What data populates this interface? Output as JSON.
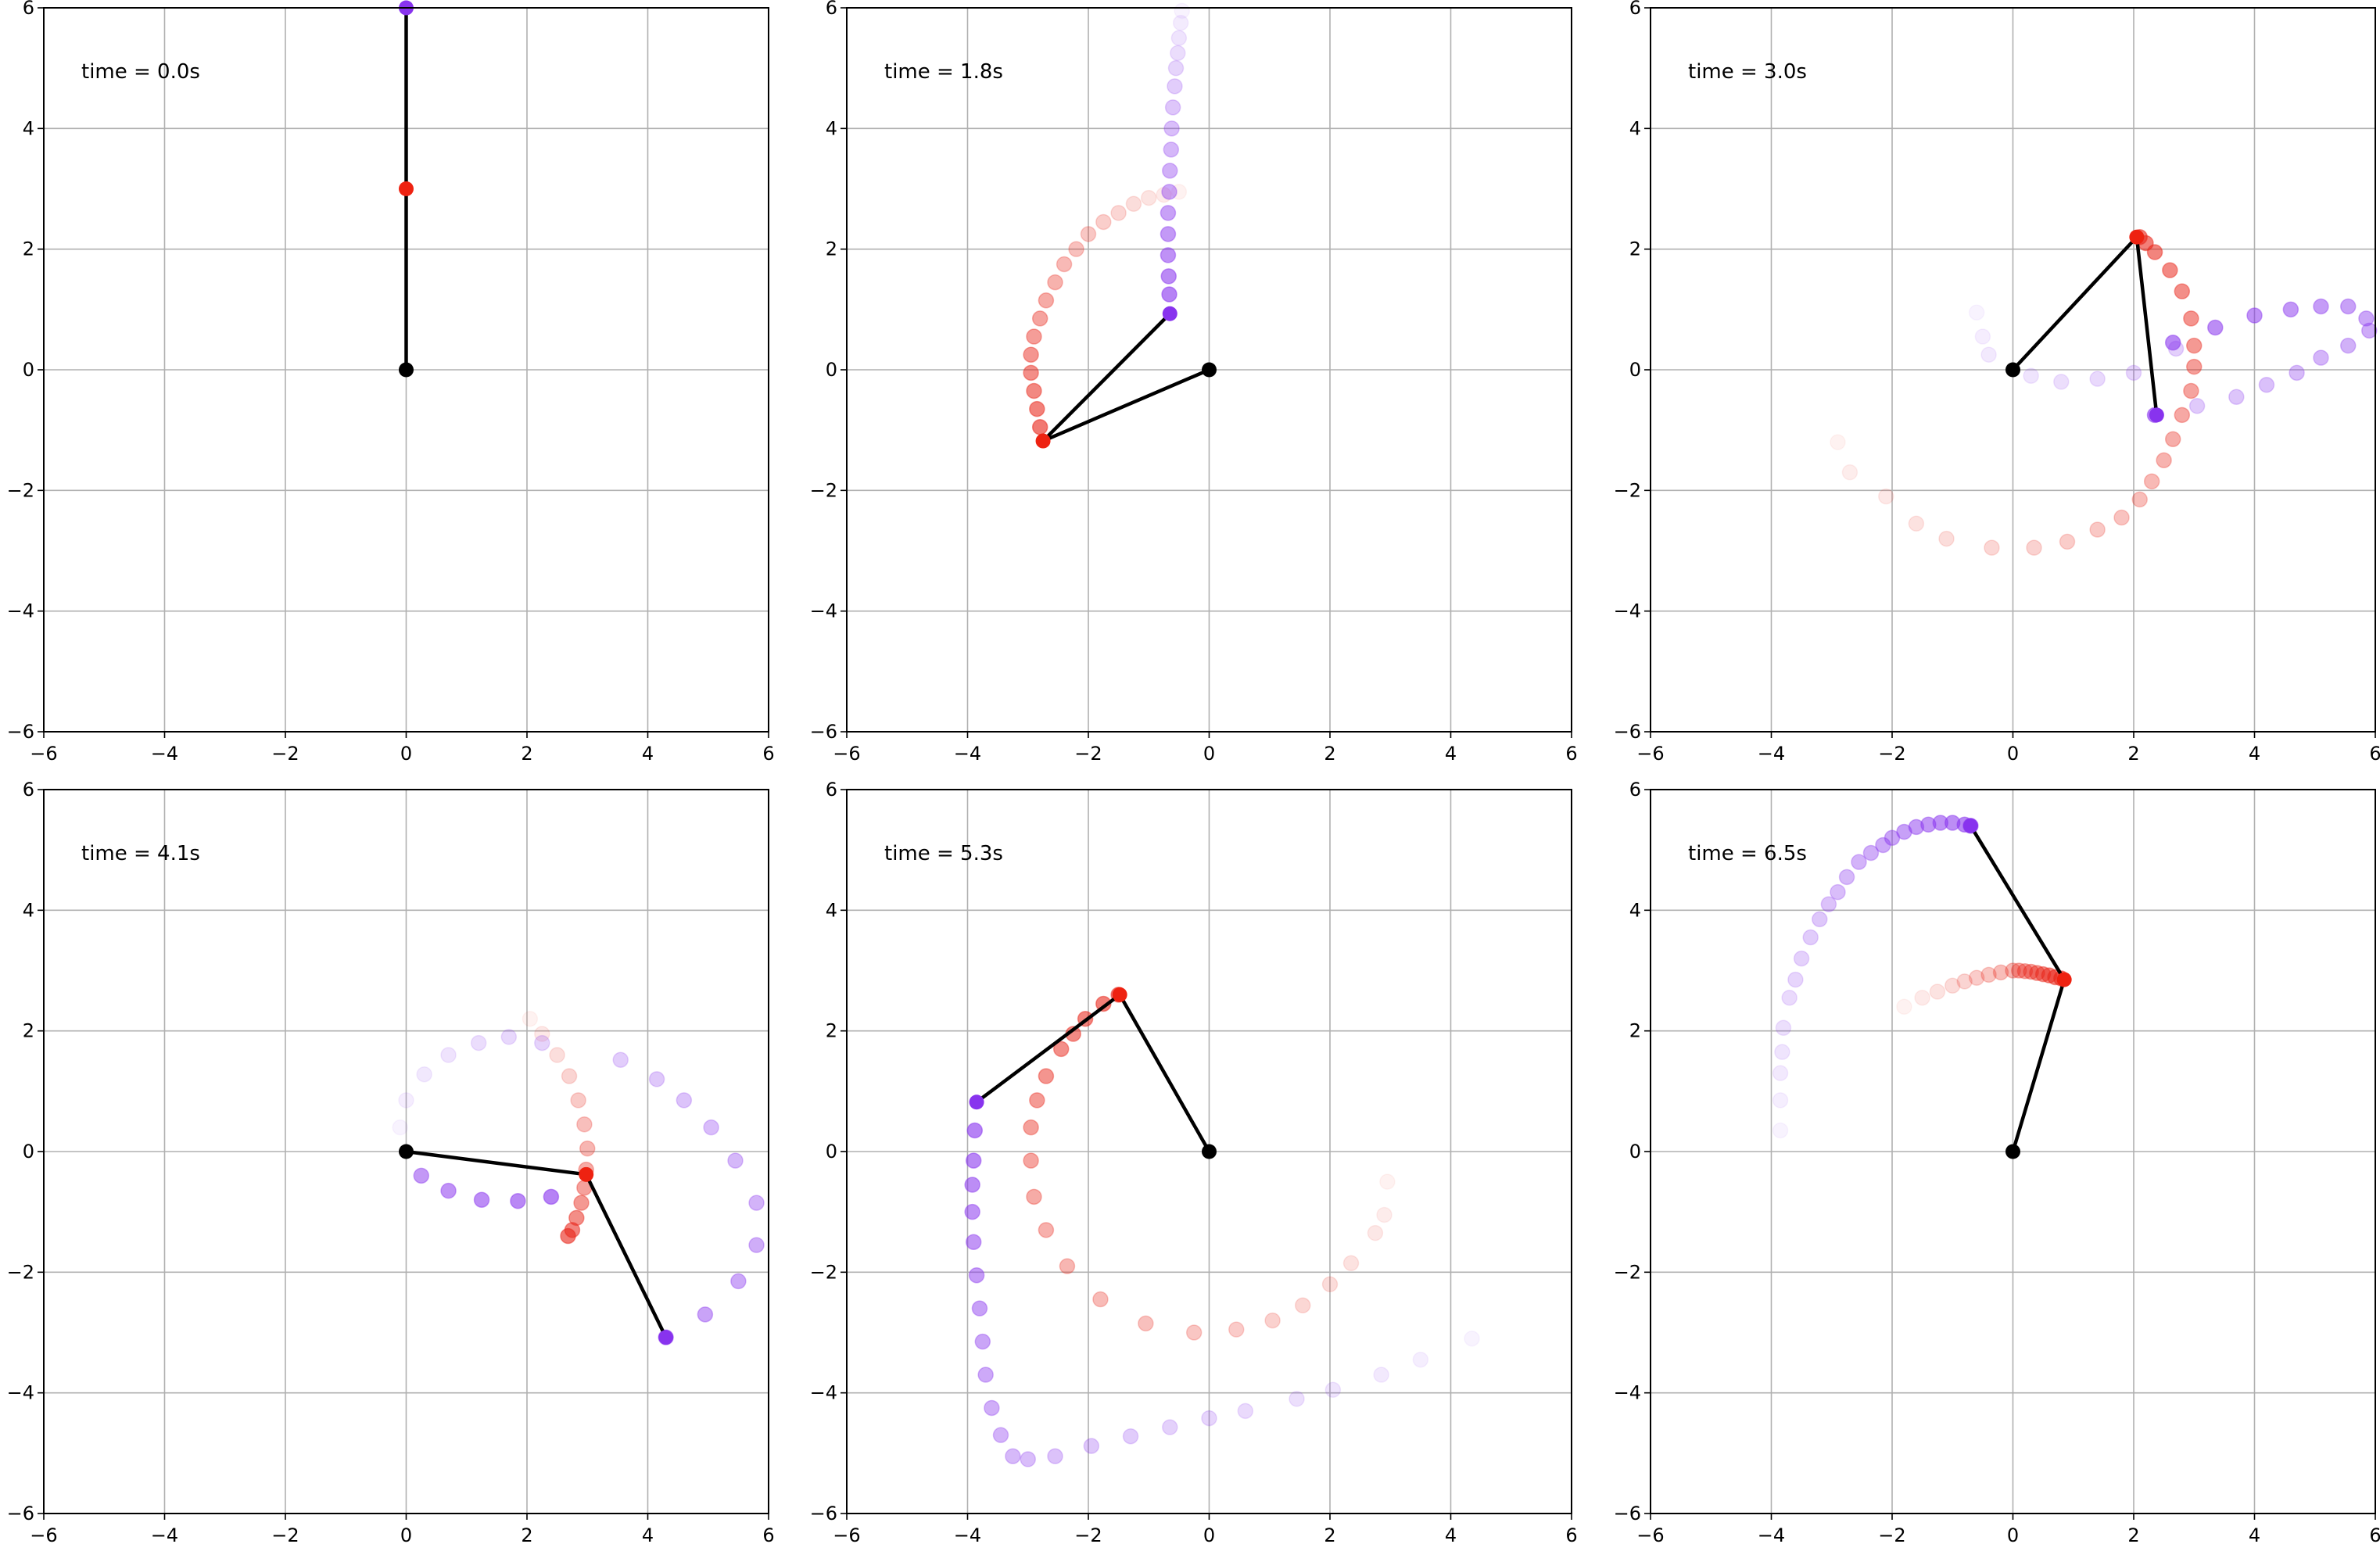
{
  "figure": {
    "grid": true,
    "layout": "2x3",
    "background": "#ffffff"
  },
  "colors": {
    "red_bob": "#ee2211",
    "purple_bob": "#8833ee",
    "arm": "#000000",
    "pivot": "#000000",
    "red_trail": "#e82418",
    "purple_trail": "#8833ee",
    "grid": "#b0b0b0"
  },
  "chart_data": [
    {
      "type": "scatter",
      "panel": "top-left",
      "time_label": "time = 0.0s",
      "xlim": [
        -6,
        6
      ],
      "ylim": [
        -6,
        6
      ],
      "xticks": [
        "−6",
        "−4",
        "−2",
        "0",
        "2",
        "4",
        "6"
      ],
      "yticks": [
        "−6",
        "−4",
        "−2",
        "0",
        "2",
        "4",
        "6"
      ],
      "pivot": [
        0,
        0
      ],
      "bob1": [
        0,
        3.0
      ],
      "bob2": [
        0,
        6.0
      ],
      "red_trail": [],
      "purple_trail": []
    },
    {
      "type": "scatter",
      "panel": "top-middle",
      "time_label": "time = 1.8s",
      "xlim": [
        -6,
        6
      ],
      "ylim": [
        -6,
        6
      ],
      "xticks": [
        "−6",
        "−4",
        "−2",
        "0",
        "2",
        "4",
        "6"
      ],
      "yticks": [
        "−6",
        "−4",
        "−2",
        "0",
        "2",
        "4",
        "6"
      ],
      "pivot": [
        0,
        0
      ],
      "bob1": [
        -2.75,
        -1.18
      ],
      "bob2": [
        -0.65,
        0.93
      ],
      "red_trail": [
        [
          -0.5,
          2.95
        ],
        [
          -0.75,
          2.9
        ],
        [
          -1.0,
          2.85
        ],
        [
          -1.25,
          2.75
        ],
        [
          -1.5,
          2.6
        ],
        [
          -1.75,
          2.45
        ],
        [
          -2.0,
          2.25
        ],
        [
          -2.2,
          2.0
        ],
        [
          -2.4,
          1.75
        ],
        [
          -2.55,
          1.45
        ],
        [
          -2.7,
          1.15
        ],
        [
          -2.8,
          0.85
        ],
        [
          -2.9,
          0.55
        ],
        [
          -2.95,
          0.25
        ],
        [
          -2.95,
          -0.05
        ],
        [
          -2.9,
          -0.35
        ],
        [
          -2.85,
          -0.65
        ],
        [
          -2.8,
          -0.95
        ]
      ],
      "purple_trail": [
        [
          -0.45,
          5.95
        ],
        [
          -0.47,
          5.75
        ],
        [
          -0.5,
          5.5
        ],
        [
          -0.52,
          5.25
        ],
        [
          -0.55,
          5.0
        ],
        [
          -0.57,
          4.7
        ],
        [
          -0.6,
          4.35
        ],
        [
          -0.62,
          4.0
        ],
        [
          -0.63,
          3.65
        ],
        [
          -0.65,
          3.3
        ],
        [
          -0.66,
          2.95
        ],
        [
          -0.68,
          2.6
        ],
        [
          -0.68,
          2.25
        ],
        [
          -0.68,
          1.9
        ],
        [
          -0.67,
          1.55
        ],
        [
          -0.66,
          1.25
        ]
      ]
    },
    {
      "type": "scatter",
      "panel": "top-right",
      "time_label": "time = 3.0s",
      "xlim": [
        -6,
        6
      ],
      "ylim": [
        -6,
        6
      ],
      "xticks": [
        "−6",
        "−4",
        "−2",
        "0",
        "2",
        "4",
        "6"
      ],
      "yticks": [
        "−6",
        "−4",
        "−2",
        "0",
        "2",
        "4",
        "6"
      ],
      "pivot": [
        0,
        0
      ],
      "bob1": [
        2.05,
        2.2
      ],
      "bob2": [
        2.38,
        -0.75
      ],
      "red_trail": [
        [
          -2.9,
          -1.2
        ],
        [
          -2.7,
          -1.7
        ],
        [
          -2.1,
          -2.1
        ],
        [
          -1.6,
          -2.55
        ],
        [
          -1.1,
          -2.8
        ],
        [
          -0.35,
          -2.95
        ],
        [
          0.35,
          -2.95
        ],
        [
          0.9,
          -2.85
        ],
        [
          1.4,
          -2.65
        ],
        [
          1.8,
          -2.45
        ],
        [
          2.1,
          -2.15
        ],
        [
          2.3,
          -1.85
        ],
        [
          2.5,
          -1.5
        ],
        [
          2.65,
          -1.15
        ],
        [
          2.8,
          -0.75
        ],
        [
          2.95,
          -0.35
        ],
        [
          3.0,
          0.05
        ],
        [
          3.0,
          0.4
        ],
        [
          2.95,
          0.85
        ],
        [
          2.8,
          1.3
        ],
        [
          2.6,
          1.65
        ],
        [
          2.35,
          1.95
        ],
        [
          2.2,
          2.1
        ],
        [
          2.1,
          2.2
        ]
      ],
      "purple_trail": [
        [
          -0.6,
          0.95
        ],
        [
          -0.5,
          0.55
        ],
        [
          -0.4,
          0.25
        ],
        [
          0.3,
          -0.1
        ],
        [
          0.8,
          -0.2
        ],
        [
          1.4,
          -0.15
        ],
        [
          2.0,
          -0.05
        ],
        [
          2.7,
          0.35
        ],
        [
          3.05,
          -0.6
        ],
        [
          3.7,
          -0.45
        ],
        [
          4.2,
          -0.25
        ],
        [
          4.7,
          -0.05
        ],
        [
          5.1,
          0.2
        ],
        [
          5.55,
          0.4
        ],
        [
          5.9,
          0.65
        ],
        [
          5.85,
          0.85
        ],
        [
          5.55,
          1.05
        ],
        [
          5.1,
          1.05
        ],
        [
          4.6,
          1.0
        ],
        [
          4.0,
          0.9
        ],
        [
          3.35,
          0.7
        ],
        [
          2.65,
          0.45
        ],
        [
          2.35,
          -0.75
        ]
      ]
    },
    {
      "type": "scatter",
      "panel": "bottom-left",
      "time_label": "time = 4.1s",
      "xlim": [
        -6,
        6
      ],
      "ylim": [
        -6,
        6
      ],
      "xticks": [
        "−6",
        "−4",
        "−2",
        "0",
        "2",
        "4",
        "6"
      ],
      "yticks": [
        "−6",
        "−4",
        "−2",
        "0",
        "2",
        "4",
        "6"
      ],
      "pivot": [
        0,
        0
      ],
      "bob1": [
        2.98,
        -0.38
      ],
      "bob2": [
        4.3,
        -3.08
      ],
      "red_trail": [
        [
          2.05,
          2.2
        ],
        [
          2.25,
          1.95
        ],
        [
          2.5,
          1.6
        ],
        [
          2.7,
          1.25
        ],
        [
          2.85,
          0.85
        ],
        [
          2.95,
          0.45
        ],
        [
          3.0,
          0.05
        ],
        [
          2.98,
          -0.3
        ],
        [
          2.95,
          -0.6
        ],
        [
          2.9,
          -0.85
        ],
        [
          2.82,
          -1.1
        ],
        [
          2.75,
          -1.3
        ],
        [
          2.68,
          -1.4
        ]
      ],
      "purple_trail": [
        [
          -0.1,
          0.4
        ],
        [
          0.0,
          0.85
        ],
        [
          0.3,
          1.28
        ],
        [
          0.7,
          1.6
        ],
        [
          1.2,
          1.8
        ],
        [
          1.7,
          1.9
        ],
        [
          2.25,
          1.8
        ],
        [
          3.55,
          1.52
        ],
        [
          4.15,
          1.2
        ],
        [
          4.6,
          0.85
        ],
        [
          5.05,
          0.4
        ],
        [
          5.45,
          -0.15
        ],
        [
          5.8,
          -0.85
        ],
        [
          5.8,
          -1.55
        ],
        [
          5.5,
          -2.15
        ],
        [
          4.95,
          -2.7
        ],
        [
          4.3,
          -3.08
        ],
        [
          0.25,
          -0.4
        ],
        [
          0.7,
          -0.65
        ],
        [
          1.25,
          -0.8
        ],
        [
          1.85,
          -0.82
        ],
        [
          2.4,
          -0.75
        ]
      ]
    },
    {
      "type": "scatter",
      "panel": "bottom-middle",
      "time_label": "time = 5.3s",
      "xlim": [
        -6,
        6
      ],
      "ylim": [
        -6,
        6
      ],
      "xticks": [
        "−6",
        "−4",
        "−2",
        "0",
        "2",
        "4",
        "6"
      ],
      "yticks": [
        "−6",
        "−4",
        "−2",
        "0",
        "2",
        "4",
        "6"
      ],
      "pivot": [
        0,
        0
      ],
      "bob1": [
        -1.48,
        2.6
      ],
      "bob2": [
        -3.85,
        0.82
      ],
      "red_trail": [
        [
          2.95,
          -0.5
        ],
        [
          2.9,
          -1.05
        ],
        [
          2.75,
          -1.35
        ],
        [
          2.35,
          -1.85
        ],
        [
          2.0,
          -2.2
        ],
        [
          1.55,
          -2.55
        ],
        [
          1.05,
          -2.8
        ],
        [
          0.45,
          -2.95
        ],
        [
          -0.25,
          -3.0
        ],
        [
          -1.05,
          -2.85
        ],
        [
          -1.8,
          -2.45
        ],
        [
          -2.35,
          -1.9
        ],
        [
          -2.7,
          -1.3
        ],
        [
          -2.9,
          -0.75
        ],
        [
          -2.95,
          -0.15
        ],
        [
          -2.95,
          0.4
        ],
        [
          -2.85,
          0.85
        ],
        [
          -2.7,
          1.25
        ],
        [
          -2.45,
          1.7
        ],
        [
          -2.25,
          1.95
        ],
        [
          -2.05,
          2.2
        ],
        [
          -1.75,
          2.45
        ],
        [
          -1.5,
          2.6
        ]
      ],
      "purple_trail": [
        [
          4.35,
          -3.1
        ],
        [
          3.5,
          -3.45
        ],
        [
          2.85,
          -3.7
        ],
        [
          2.05,
          -3.95
        ],
        [
          1.45,
          -4.1
        ],
        [
          0.6,
          -4.3
        ],
        [
          0.0,
          -4.42
        ],
        [
          -0.65,
          -4.57
        ],
        [
          -1.3,
          -4.72
        ],
        [
          -1.95,
          -4.88
        ],
        [
          -2.55,
          -5.05
        ],
        [
          -3.0,
          -5.1
        ],
        [
          -3.25,
          -5.05
        ],
        [
          -3.45,
          -4.7
        ],
        [
          -3.6,
          -4.25
        ],
        [
          -3.7,
          -3.7
        ],
        [
          -3.75,
          -3.15
        ],
        [
          -3.8,
          -2.6
        ],
        [
          -3.85,
          -2.05
        ],
        [
          -3.9,
          -1.5
        ],
        [
          -3.92,
          -1.0
        ],
        [
          -3.92,
          -0.55
        ],
        [
          -3.9,
          -0.15
        ],
        [
          -3.88,
          0.35
        ]
      ]
    },
    {
      "type": "scatter",
      "panel": "bottom-right",
      "time_label": "time = 6.5s",
      "xlim": [
        -6,
        6
      ],
      "ylim": [
        -6,
        6
      ],
      "xticks": [
        "−6",
        "−4",
        "−2",
        "0",
        "2",
        "4",
        "6"
      ],
      "yticks": [
        "−6",
        "−4",
        "−2",
        "0",
        "2",
        "4",
        "6"
      ],
      "pivot": [
        0,
        0
      ],
      "bob1": [
        0.85,
        2.85
      ],
      "bob2": [
        -0.7,
        5.4
      ],
      "red_trail": [
        [
          -1.8,
          2.4
        ],
        [
          -1.5,
          2.55
        ],
        [
          -1.25,
          2.65
        ],
        [
          -1.0,
          2.75
        ],
        [
          -0.8,
          2.82
        ],
        [
          -0.6,
          2.88
        ],
        [
          -0.4,
          2.93
        ],
        [
          -0.2,
          2.97
        ],
        [
          0.0,
          3.0
        ],
        [
          0.1,
          3.0
        ],
        [
          0.2,
          2.99
        ],
        [
          0.3,
          2.98
        ],
        [
          0.4,
          2.96
        ],
        [
          0.5,
          2.94
        ],
        [
          0.6,
          2.92
        ],
        [
          0.7,
          2.89
        ],
        [
          0.8,
          2.87
        ]
      ],
      "purple_trail": [
        [
          -3.85,
          0.35
        ],
        [
          -3.85,
          0.85
        ],
        [
          -3.85,
          1.3
        ],
        [
          -3.82,
          1.65
        ],
        [
          -3.8,
          2.05
        ],
        [
          -3.7,
          2.55
        ],
        [
          -3.6,
          2.85
        ],
        [
          -3.5,
          3.2
        ],
        [
          -3.35,
          3.55
        ],
        [
          -3.2,
          3.85
        ],
        [
          -3.05,
          4.1
        ],
        [
          -2.9,
          4.3
        ],
        [
          -2.75,
          4.55
        ],
        [
          -2.55,
          4.8
        ],
        [
          -2.35,
          4.95
        ],
        [
          -2.15,
          5.08
        ],
        [
          -2.0,
          5.2
        ],
        [
          -1.8,
          5.3
        ],
        [
          -1.6,
          5.38
        ],
        [
          -1.4,
          5.42
        ],
        [
          -1.2,
          5.45
        ],
        [
          -1.0,
          5.45
        ],
        [
          -0.8,
          5.42
        ],
        [
          -0.7,
          5.4
        ]
      ]
    }
  ]
}
